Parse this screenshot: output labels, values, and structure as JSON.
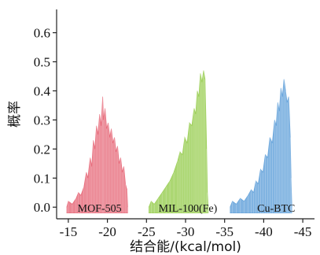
{
  "chart_data": {
    "type": "area",
    "xlabel": "结合能/(kcal/mol)",
    "ylabel": "概率",
    "x_ticks": [
      "-15",
      "-20",
      "-25",
      "-30",
      "-35",
      "-40",
      "-45"
    ],
    "y_ticks": [
      "0.0",
      "0.1",
      "0.2",
      "0.3",
      "0.4",
      "0.5",
      "0.6"
    ],
    "xlim": [
      -13.5,
      -46.5
    ],
    "ylim": [
      -0.04,
      0.68
    ],
    "grid": false,
    "legend": "labels placed inside plot",
    "series": [
      {
        "name": "MOF-505",
        "color": "#e8707f",
        "points": [
          [
            -14.8,
            0.0
          ],
          [
            -15.0,
            0.02
          ],
          [
            -15.5,
            0.01
          ],
          [
            -16.0,
            0.03
          ],
          [
            -16.3,
            0.05
          ],
          [
            -16.6,
            0.04
          ],
          [
            -17.0,
            0.07
          ],
          [
            -17.3,
            0.12
          ],
          [
            -17.5,
            0.1
          ],
          [
            -17.8,
            0.17
          ],
          [
            -18.0,
            0.14
          ],
          [
            -18.2,
            0.23
          ],
          [
            -18.4,
            0.2
          ],
          [
            -18.6,
            0.28
          ],
          [
            -18.8,
            0.25
          ],
          [
            -19.0,
            0.32
          ],
          [
            -19.2,
            0.28
          ],
          [
            -19.4,
            0.38
          ],
          [
            -19.5,
            0.3
          ],
          [
            -19.7,
            0.34
          ],
          [
            -19.9,
            0.27
          ],
          [
            -20.1,
            0.29
          ],
          [
            -20.3,
            0.24
          ],
          [
            -20.5,
            0.27
          ],
          [
            -20.7,
            0.22
          ],
          [
            -20.9,
            0.24
          ],
          [
            -21.1,
            0.19
          ],
          [
            -21.3,
            0.21
          ],
          [
            -21.5,
            0.15
          ],
          [
            -21.7,
            0.17
          ],
          [
            -21.9,
            0.12
          ],
          [
            -22.1,
            0.14
          ],
          [
            -22.3,
            0.08
          ],
          [
            -22.5,
            0.06
          ],
          [
            -22.6,
            0.0
          ]
        ]
      },
      {
        "name": "MIL-100(Fe)",
        "color": "#9ed05a",
        "points": [
          [
            -25.3,
            0.0
          ],
          [
            -25.6,
            0.02
          ],
          [
            -26.0,
            0.01
          ],
          [
            -26.5,
            0.03
          ],
          [
            -27.0,
            0.05
          ],
          [
            -27.5,
            0.07
          ],
          [
            -28.0,
            0.09
          ],
          [
            -28.5,
            0.12
          ],
          [
            -29.0,
            0.16
          ],
          [
            -29.3,
            0.19
          ],
          [
            -29.6,
            0.18
          ],
          [
            -29.9,
            0.24
          ],
          [
            -30.2,
            0.22
          ],
          [
            -30.5,
            0.29
          ],
          [
            -30.8,
            0.28
          ],
          [
            -31.1,
            0.34
          ],
          [
            -31.3,
            0.32
          ],
          [
            -31.5,
            0.4
          ],
          [
            -31.7,
            0.38
          ],
          [
            -31.9,
            0.46
          ],
          [
            -32.1,
            0.43
          ],
          [
            -32.3,
            0.47
          ],
          [
            -32.5,
            0.44
          ],
          [
            -32.7,
            0.2
          ],
          [
            -32.8,
            0.05
          ],
          [
            -32.9,
            0.0
          ]
        ]
      },
      {
        "name": "Cu-BTC",
        "color": "#6aa6dc",
        "points": [
          [
            -35.7,
            0.0
          ],
          [
            -36.0,
            0.02
          ],
          [
            -36.5,
            0.01
          ],
          [
            -37.0,
            0.03
          ],
          [
            -37.5,
            0.02
          ],
          [
            -38.0,
            0.04
          ],
          [
            -38.4,
            0.06
          ],
          [
            -38.7,
            0.05
          ],
          [
            -39.0,
            0.09
          ],
          [
            -39.3,
            0.08
          ],
          [
            -39.6,
            0.13
          ],
          [
            -39.9,
            0.12
          ],
          [
            -40.2,
            0.18
          ],
          [
            -40.5,
            0.17
          ],
          [
            -40.8,
            0.24
          ],
          [
            -41.1,
            0.22
          ],
          [
            -41.4,
            0.3
          ],
          [
            -41.6,
            0.28
          ],
          [
            -41.8,
            0.36
          ],
          [
            -42.0,
            0.33
          ],
          [
            -42.2,
            0.41
          ],
          [
            -42.4,
            0.38
          ],
          [
            -42.6,
            0.44
          ],
          [
            -42.8,
            0.4
          ],
          [
            -43.0,
            0.36
          ],
          [
            -43.2,
            0.38
          ],
          [
            -43.4,
            0.24
          ],
          [
            -43.5,
            0.1
          ],
          [
            -43.6,
            0.0
          ]
        ]
      }
    ],
    "annotations": [
      {
        "text": "MOF-505",
        "x": -19.0,
        "y": -0.015
      },
      {
        "text": "MIL-100(Fe)",
        "x": -30.3,
        "y": -0.015
      },
      {
        "text": "Cu-BTC",
        "x": -41.6,
        "y": -0.015
      }
    ]
  }
}
